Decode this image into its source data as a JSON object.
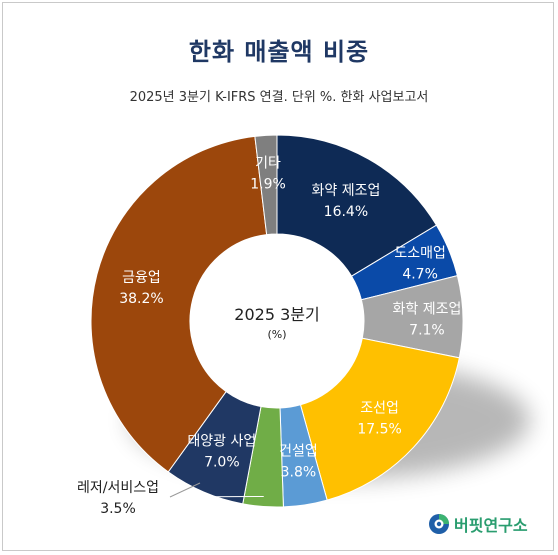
{
  "chart_data": {
    "type": "pie",
    "style": "donut",
    "title": "한화 매출액 비중",
    "subtitle": "2025년 3분기 K-IFRS 연결. 단위 %. 한화 사업보고서",
    "center_label": "2025 3분기",
    "center_sublabel": "(%)",
    "slices": [
      {
        "label": "화약 제조업",
        "value": 16.4,
        "display": "16.4%",
        "color": "#0e2a55"
      },
      {
        "label": "도소매업",
        "value": 4.7,
        "display": "4.7%",
        "color": "#0a4aa8"
      },
      {
        "label": "화학 제조업",
        "value": 7.1,
        "display": "7.1%",
        "color": "#a6a6a6"
      },
      {
        "label": "조선업",
        "value": 17.5,
        "display": "17.5%",
        "color": "#ffc000"
      },
      {
        "label": "건설업",
        "value": 3.8,
        "display": "3.8%",
        "color": "#5b9bd5"
      },
      {
        "label": "레저/서비스업",
        "value": 3.5,
        "display": "3.5%",
        "color": "#70ad47"
      },
      {
        "label": "태양광 사업",
        "value": 7.0,
        "display": "7.0%",
        "color": "#203864"
      },
      {
        "label": "금융업",
        "value": 38.2,
        "display": "38.2%",
        "color": "#9c470c"
      },
      {
        "label": "기타",
        "value": 1.9,
        "display": "1.9%",
        "color": "#7f7f7f"
      }
    ]
  },
  "brand": {
    "name": "버핏연구소",
    "logo_icon": "buffett-lab-logo-icon"
  }
}
